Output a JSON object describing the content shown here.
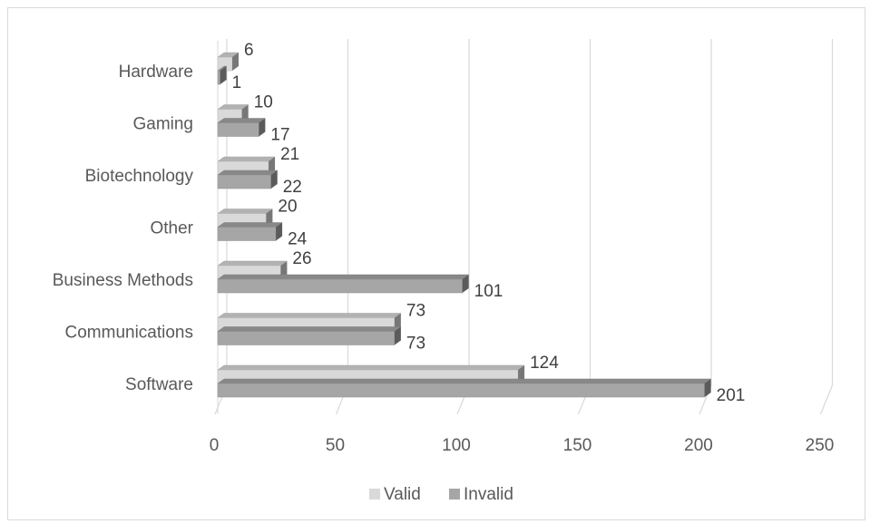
{
  "chart_data": {
    "type": "bar",
    "orientation": "horizontal",
    "style": "3d-clustered",
    "categories": [
      "Hardware",
      "Gaming",
      "Biotechnology",
      "Other",
      "Business Methods",
      "Communications",
      "Software"
    ],
    "series": [
      {
        "name": "Valid",
        "values": [
          6,
          10,
          21,
          20,
          26,
          73,
          124
        ],
        "color": "#d9d9d9"
      },
      {
        "name": "Invalid",
        "values": [
          1,
          17,
          22,
          24,
          101,
          73,
          201
        ],
        "color": "#a6a6a6"
      }
    ],
    "xlim": [
      0,
      250
    ],
    "xticks": [
      0,
      50,
      100,
      150,
      200,
      250
    ],
    "grid": true,
    "legend": "bottom",
    "title": "",
    "xlabel": "",
    "ylabel": ""
  }
}
